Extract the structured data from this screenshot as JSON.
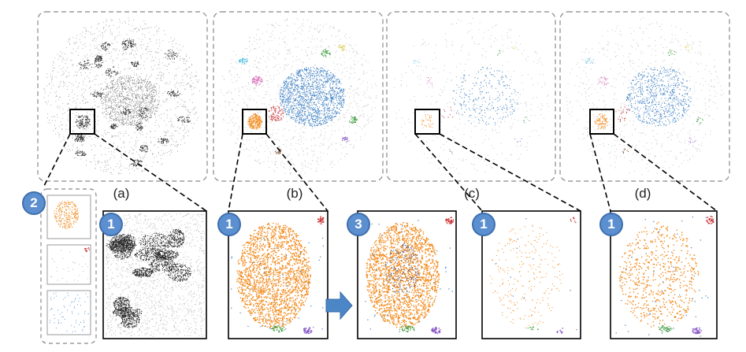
{
  "captions": {
    "a": "(a)",
    "b": "(b)",
    "c": "(c)",
    "d": "(d)"
  },
  "badges": {
    "legend_panel": "2",
    "zoom_a": "1",
    "zoom_b": "1",
    "zoom_b_modified": "3",
    "zoom_c": "1",
    "zoom_d": "1"
  },
  "colors": {
    "cluster_main": "#3a7fc4",
    "cluster_orange": "#f28a1c",
    "cluster_red": "#c8282a",
    "cluster_green": "#3a9a3a",
    "cluster_purple": "#8a5ac8",
    "cluster_pink": "#d66bb6",
    "cluster_cyan": "#33b5d8",
    "cluster_brown": "#8b5a3c",
    "cluster_yellow": "#d8c43a",
    "points_gray": "#333333",
    "badge_fill": "#5b8fd0",
    "arrow_fill": "#4d86c6",
    "panel_border": "#888888"
  },
  "arrow_icon": "right-arrow-icon"
}
